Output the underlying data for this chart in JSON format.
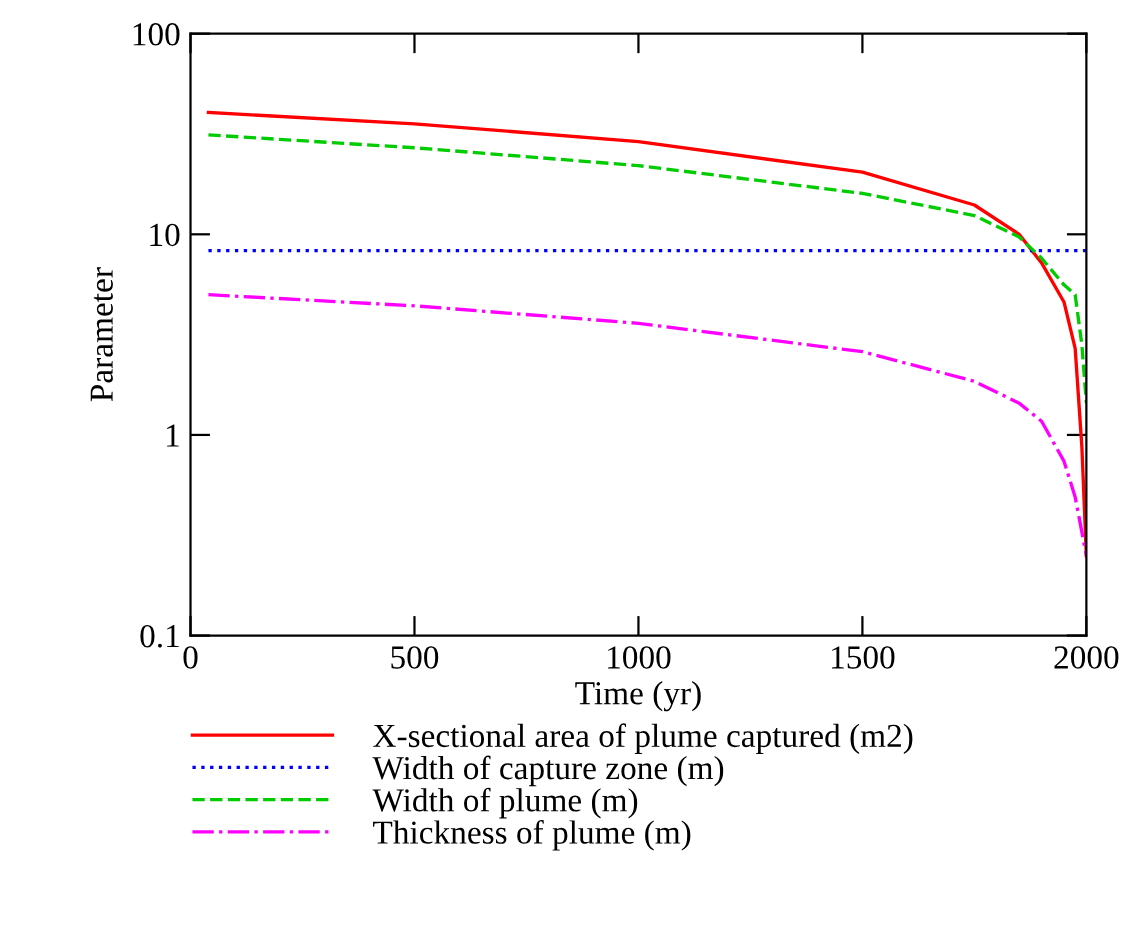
{
  "chart_data": {
    "type": "line",
    "xlabel": "Time (yr)",
    "ylabel": "Parameter",
    "log": "y",
    "xlim": [
      0,
      2000
    ],
    "xticks": [
      0,
      500,
      1000,
      1500,
      2000
    ],
    "ylim": [
      0.1,
      100
    ],
    "yticks": [
      0.1,
      1,
      10,
      100
    ],
    "grid": false,
    "legend": "bottom",
    "marker": "none",
    "series": [
      {
        "name": "X-sectional area of plume captured (m2)",
        "color": "#ff0000",
        "line_style": "solid",
        "x": [
          40,
          500,
          1000,
          1500,
          1750,
          1850,
          1900,
          1950,
          1975,
          1990,
          2000
        ],
        "values": [
          40.5,
          35.5,
          29,
          20.4,
          14,
          10,
          7.2,
          4.6,
          2.7,
          0.87,
          0.25
        ]
      },
      {
        "name": "Width of capture zone (m)",
        "color": "#0000ff",
        "line_style": "dotted",
        "x": [
          40,
          2000
        ],
        "values": [
          8.3,
          8.3
        ]
      },
      {
        "name": "Width of plume (m)",
        "color": "#00cc00",
        "line_style": "dashed",
        "x": [
          40,
          500,
          1000,
          1500,
          1750,
          1850,
          1900,
          1950,
          1975,
          1990,
          2000
        ],
        "values": [
          31.3,
          27,
          22,
          16,
          12.4,
          9.7,
          7.6,
          5.6,
          5,
          2.8,
          1.44
        ]
      },
      {
        "name": "Thickness of plume (m)",
        "color": "#ff00ff",
        "line_style": "dashdot",
        "x": [
          40,
          500,
          1000,
          1500,
          1750,
          1850,
          1900,
          1950,
          1975,
          2000
        ],
        "values": [
          5,
          4.4,
          3.6,
          2.6,
          1.85,
          1.44,
          1.17,
          0.74,
          0.49,
          0.25
        ]
      }
    ]
  }
}
